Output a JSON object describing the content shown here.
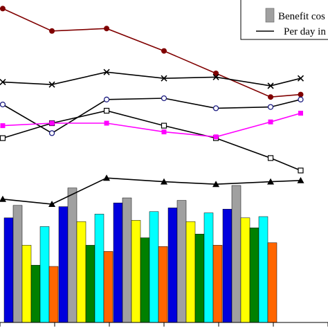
{
  "chart_data": {
    "type": "bar+line",
    "x_groups": 6,
    "legend": {
      "placement": "top-right",
      "entries": [
        {
          "label": "Benefit cos",
          "symbol": "gray-bar"
        },
        {
          "label": "Per day in",
          "symbol": "black-line"
        }
      ]
    },
    "bar_series": [
      {
        "color": "#0000dd",
        "values": [
          [
            0,
            42.0
          ],
          [
            1,
            46.5
          ],
          [
            2,
            48.0
          ],
          [
            3,
            46.0
          ],
          [
            4,
            45.5
          ]
        ]
      },
      {
        "color": "#a0a0a0",
        "values": [
          [
            0,
            47.0
          ],
          [
            1,
            54.0
          ],
          [
            2,
            50.0
          ],
          [
            3,
            49.0
          ],
          [
            4,
            55.0
          ]
        ]
      },
      {
        "color": "#ffff00",
        "values": [
          [
            0,
            31.0
          ],
          [
            1,
            40.5
          ],
          [
            2,
            41.0
          ],
          [
            3,
            40.5
          ],
          [
            4,
            42.0
          ]
        ]
      },
      {
        "color": "#008000",
        "values": [
          [
            0,
            23.0
          ],
          [
            1,
            31.0
          ],
          [
            2,
            34.0
          ],
          [
            3,
            35.5
          ],
          [
            4,
            38.0
          ]
        ]
      },
      {
        "color": "#00ffff",
        "values": [
          [
            0,
            38.5
          ],
          [
            1,
            43.5
          ],
          [
            2,
            44.5
          ],
          [
            3,
            44.0
          ],
          [
            4,
            42.5
          ]
        ]
      },
      {
        "color": "#ff6600",
        "values": [
          [
            0,
            22.5
          ],
          [
            1,
            28.5
          ],
          [
            2,
            30.5
          ],
          [
            3,
            31.0
          ],
          [
            4,
            32.0
          ]
        ]
      }
    ],
    "line_series": [
      {
        "color": "#800000",
        "marker": "dot",
        "values": [
          [
            -0.45,
            126.0
          ],
          [
            0.45,
            117.0
          ],
          [
            1.45,
            118.0
          ],
          [
            2.5,
            109.0
          ],
          [
            3.45,
            100.0
          ],
          [
            4.45,
            90.5
          ],
          [
            5.0,
            91.5
          ]
        ]
      },
      {
        "color": "#000000",
        "marker": "x",
        "values": [
          [
            -0.45,
            96.5
          ],
          [
            0.45,
            95.5
          ],
          [
            1.45,
            100.5
          ],
          [
            2.5,
            98.0
          ],
          [
            3.45,
            98.5
          ],
          [
            4.45,
            95.0
          ],
          [
            5.0,
            98.0
          ]
        ]
      },
      {
        "color": "#000000",
        "marker": "circle",
        "values": [
          [
            -0.45,
            87.5
          ],
          [
            0.45,
            76.0
          ],
          [
            1.45,
            89.5
          ],
          [
            2.5,
            90.0
          ],
          [
            3.45,
            86.0
          ],
          [
            4.45,
            86.5
          ],
          [
            5.0,
            89.5
          ]
        ]
      },
      {
        "color": "#000000",
        "marker": "square",
        "values": [
          [
            -0.45,
            74.0
          ],
          [
            0.45,
            80.0
          ],
          [
            1.45,
            85.0
          ],
          [
            2.5,
            79.0
          ],
          [
            3.45,
            74.0
          ],
          [
            4.45,
            66.0
          ],
          [
            5.0,
            61.0
          ]
        ]
      },
      {
        "color": "#ff00ff",
        "marker": "square-filled",
        "values": [
          [
            -0.45,
            79.0
          ],
          [
            0.45,
            80.0
          ],
          [
            1.45,
            80.0
          ],
          [
            2.5,
            76.5
          ],
          [
            3.45,
            74.5
          ],
          [
            4.45,
            80.5
          ],
          [
            5.0,
            84.0
          ]
        ]
      },
      {
        "color": "#000000",
        "marker": "triangle",
        "values": [
          [
            -0.45,
            49.5
          ],
          [
            0.45,
            47.5
          ],
          [
            1.45,
            58.0
          ],
          [
            2.5,
            56.5
          ],
          [
            3.45,
            55.5
          ],
          [
            4.45,
            56.5
          ],
          [
            5.0,
            57.0
          ]
        ]
      }
    ]
  }
}
